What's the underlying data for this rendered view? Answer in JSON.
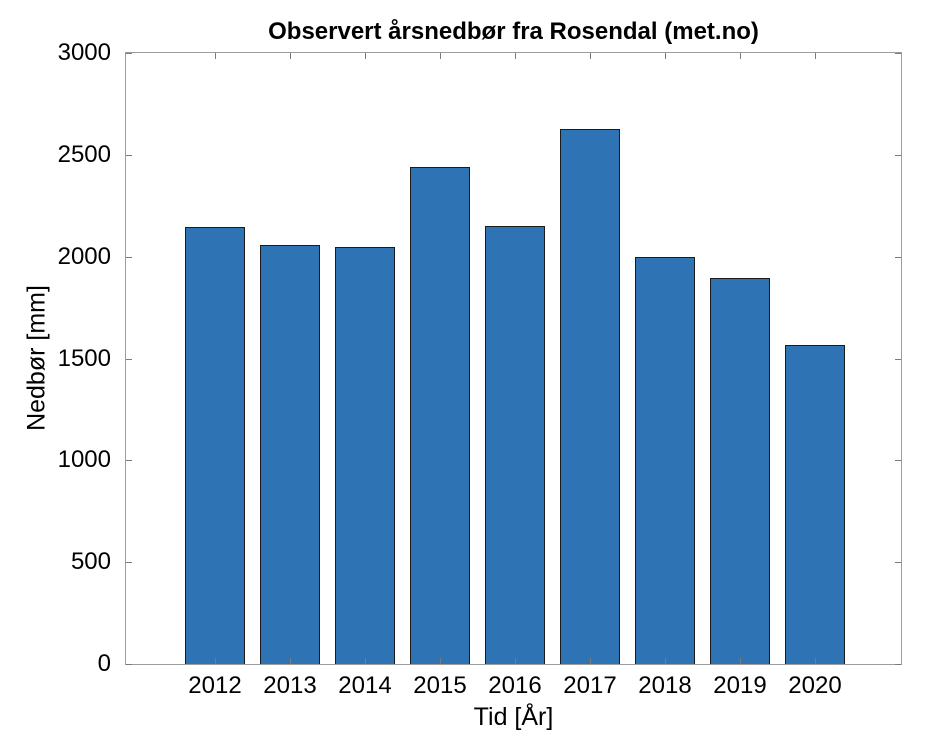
{
  "chart_data": {
    "type": "bar",
    "title": "Observert årsnedbør fra Rosendal (met.no)",
    "xlabel": "Tid [År]",
    "ylabel": "Nedbør [mm]",
    "categories": [
      "2012",
      "2013",
      "2014",
      "2015",
      "2016",
      "2017",
      "2018",
      "2019",
      "2020"
    ],
    "values": [
      2145,
      2058,
      2048,
      2442,
      2153,
      2628,
      1998,
      1896,
      1568
    ],
    "ylim": [
      0,
      3000
    ],
    "yticks": [
      0,
      500,
      1000,
      1500,
      2000,
      2500,
      3000
    ],
    "grid": false,
    "legend_position": "none",
    "tick_direction": "in",
    "box": true,
    "bar_color": "#2E74B5",
    "bar_edge_color": "#1b1b1b",
    "axis_box_color": "#9c9c9c",
    "tick_color": "#7a7a7a",
    "text_color": "#000000",
    "background_color": "#ffffff"
  }
}
